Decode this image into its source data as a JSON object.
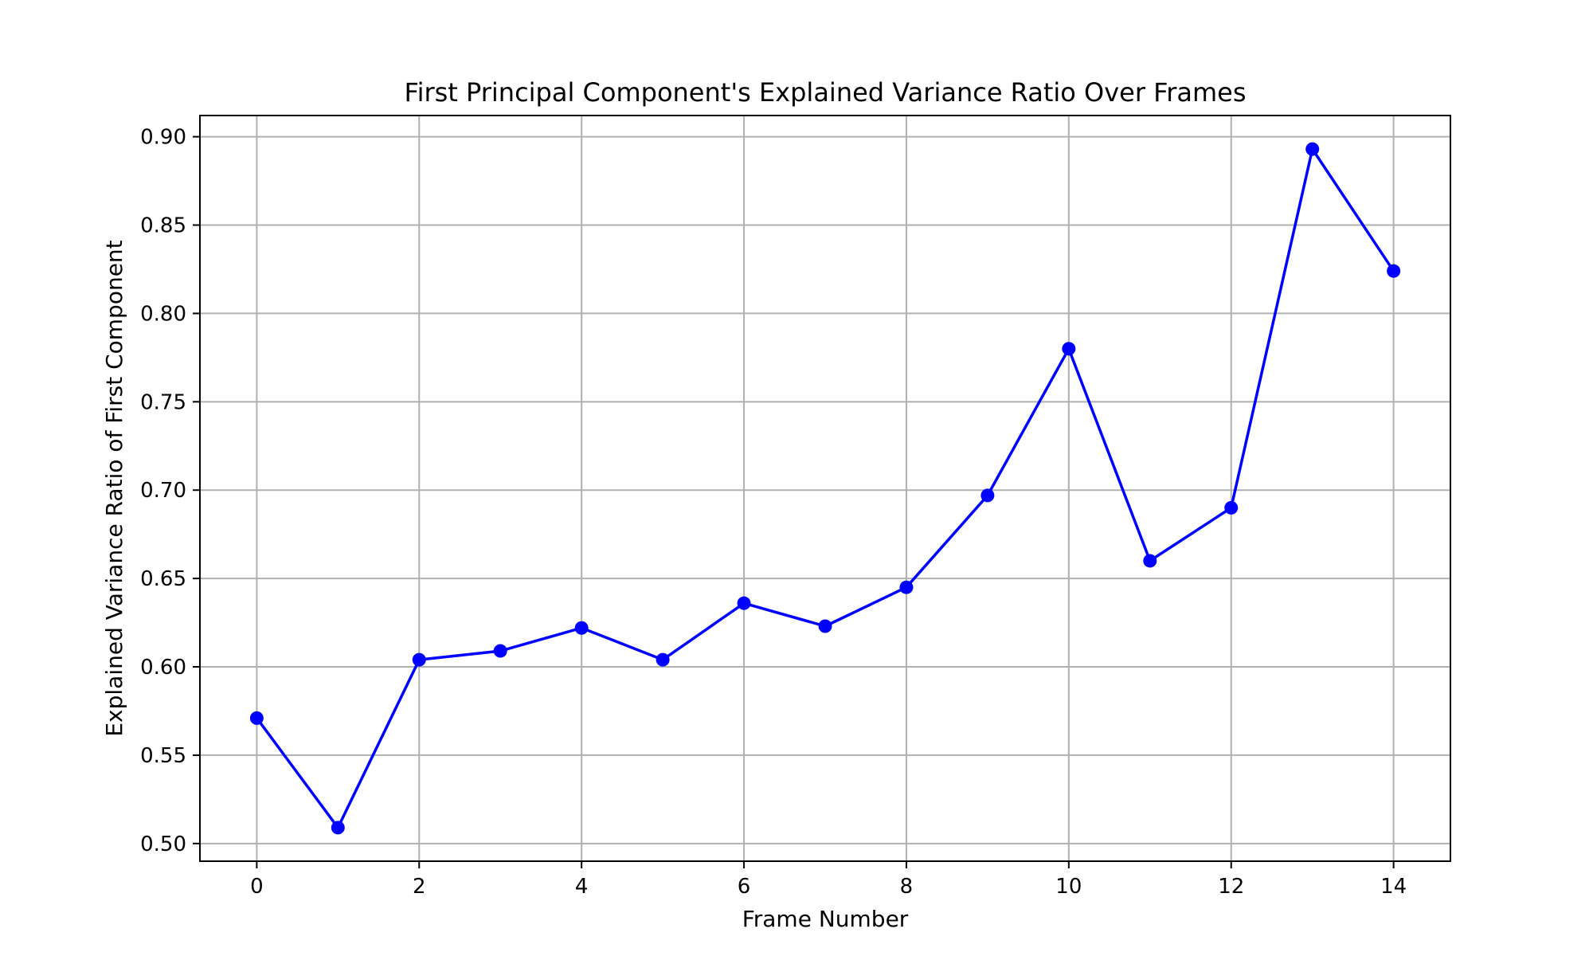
{
  "chart_data": {
    "type": "line",
    "title": "First Principal Component's Explained Variance Ratio Over Frames",
    "xlabel": "Frame Number",
    "ylabel": "Explained Variance Ratio of First Component",
    "xlim": [
      -0.7,
      14.7
    ],
    "ylim": [
      0.49,
      0.912
    ],
    "xticks": [
      0,
      2,
      4,
      6,
      8,
      10,
      12,
      14
    ],
    "xtick_labels": [
      "0",
      "2",
      "4",
      "6",
      "8",
      "10",
      "12",
      "14"
    ],
    "yticks": [
      0.5,
      0.55,
      0.6,
      0.65,
      0.7,
      0.75,
      0.8,
      0.85,
      0.9
    ],
    "ytick_labels": [
      "0.50",
      "0.55",
      "0.60",
      "0.65",
      "0.70",
      "0.75",
      "0.80",
      "0.85",
      "0.90"
    ],
    "grid": true,
    "series": [
      {
        "color": "#0000ff",
        "marker": "circle",
        "x": [
          0,
          1,
          2,
          3,
          4,
          5,
          6,
          7,
          8,
          9,
          10,
          11,
          12,
          13,
          14
        ],
        "y": [
          0.571,
          0.509,
          0.604,
          0.609,
          0.622,
          0.604,
          0.636,
          0.623,
          0.645,
          0.697,
          0.78,
          0.66,
          0.69,
          0.893,
          0.824
        ]
      }
    ]
  }
}
